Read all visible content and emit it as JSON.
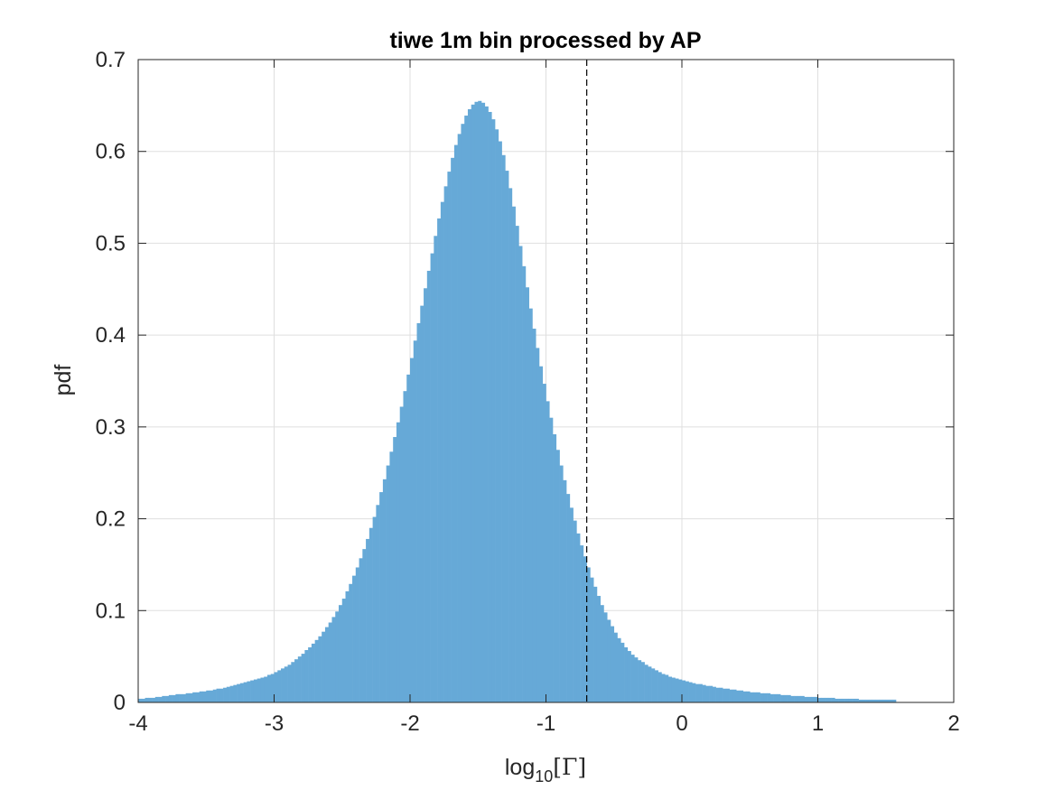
{
  "chart_data": {
    "type": "bar",
    "title": "tiwe 1m bin processed by AP",
    "xlabel": {
      "base": "log",
      "sub": "10",
      "rest": "[Γ]"
    },
    "ylabel": "pdf",
    "xlim": [
      -4,
      2
    ],
    "ylim": [
      0,
      0.7
    ],
    "xticks": [
      -4,
      -3,
      -2,
      -1,
      0,
      1,
      2
    ],
    "xtick_labels": [
      "-4",
      "-3",
      "-2",
      "-1",
      "0",
      "1",
      "2"
    ],
    "yticks": [
      0,
      0.1,
      0.2,
      0.3,
      0.4,
      0.5,
      0.6,
      0.7
    ],
    "ytick_labels": [
      "0",
      "0.1",
      "0.2",
      "0.3",
      "0.4",
      "0.5",
      "0.6",
      "0.7"
    ],
    "grid": true,
    "bin_edges_start": -4,
    "bin_width": 0.025,
    "values": [
      0.004,
      0.004,
      0.005,
      0.005,
      0.005,
      0.006,
      0.006,
      0.007,
      0.007,
      0.008,
      0.008,
      0.009,
      0.009,
      0.009,
      0.01,
      0.01,
      0.011,
      0.011,
      0.012,
      0.012,
      0.013,
      0.013,
      0.014,
      0.015,
      0.015,
      0.016,
      0.017,
      0.018,
      0.019,
      0.02,
      0.021,
      0.022,
      0.023,
      0.024,
      0.025,
      0.026,
      0.027,
      0.028,
      0.03,
      0.031,
      0.033,
      0.035,
      0.037,
      0.039,
      0.041,
      0.044,
      0.047,
      0.05,
      0.053,
      0.057,
      0.06,
      0.064,
      0.068,
      0.072,
      0.077,
      0.082,
      0.087,
      0.093,
      0.099,
      0.106,
      0.113,
      0.121,
      0.129,
      0.138,
      0.147,
      0.157,
      0.167,
      0.178,
      0.19,
      0.202,
      0.215,
      0.229,
      0.243,
      0.258,
      0.273,
      0.289,
      0.305,
      0.322,
      0.339,
      0.357,
      0.375,
      0.394,
      0.413,
      0.432,
      0.451,
      0.47,
      0.489,
      0.508,
      0.527,
      0.545,
      0.562,
      0.578,
      0.593,
      0.607,
      0.619,
      0.63,
      0.639,
      0.646,
      0.651,
      0.654,
      0.655,
      0.653,
      0.649,
      0.643,
      0.635,
      0.624,
      0.611,
      0.596,
      0.579,
      0.56,
      0.54,
      0.519,
      0.497,
      0.475,
      0.452,
      0.429,
      0.407,
      0.386,
      0.366,
      0.347,
      0.328,
      0.31,
      0.292,
      0.275,
      0.258,
      0.242,
      0.227,
      0.212,
      0.198,
      0.184,
      0.171,
      0.159,
      0.147,
      0.136,
      0.126,
      0.116,
      0.106,
      0.098,
      0.09,
      0.083,
      0.076,
      0.07,
      0.065,
      0.06,
      0.056,
      0.052,
      0.049,
      0.046,
      0.044,
      0.041,
      0.039,
      0.037,
      0.035,
      0.033,
      0.031,
      0.03,
      0.028,
      0.027,
      0.026,
      0.025,
      0.024,
      0.023,
      0.022,
      0.021,
      0.02,
      0.02,
      0.019,
      0.018,
      0.018,
      0.017,
      0.016,
      0.016,
      0.015,
      0.015,
      0.014,
      0.014,
      0.013,
      0.013,
      0.012,
      0.012,
      0.011,
      0.011,
      0.011,
      0.01,
      0.01,
      0.01,
      0.009,
      0.009,
      0.009,
      0.008,
      0.008,
      0.008,
      0.007,
      0.007,
      0.007,
      0.007,
      0.006,
      0.006,
      0.006,
      0.006,
      0.005,
      0.005,
      0.005,
      0.005,
      0.005,
      0.004,
      0.004,
      0.004,
      0.004,
      0.004,
      0.004,
      0.004,
      0.003,
      0.003,
      0.003,
      0.003,
      0.003,
      0.003,
      0.003,
      0.003,
      0.003,
      0.003,
      0.003
    ],
    "reference_line_x": -0.7,
    "colors": {
      "bar": "#66a9d7",
      "grid": "#dfdfdf",
      "axis": "#262626",
      "reference_line": "#000000"
    }
  }
}
